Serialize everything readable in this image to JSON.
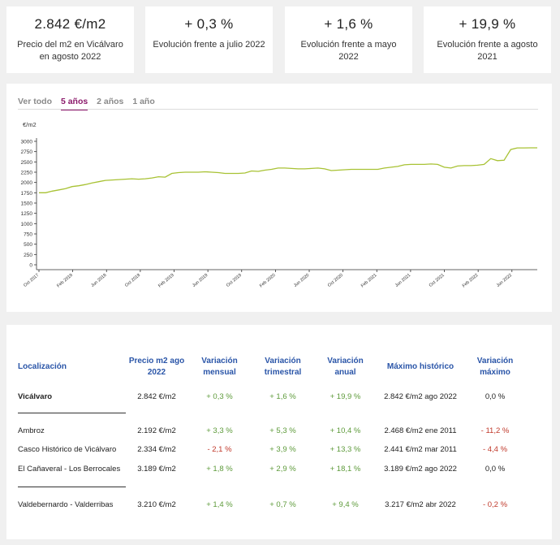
{
  "kpis": [
    {
      "value": "2.842 €/m2",
      "label": "Precio del m2 en Vicálvaro en agosto 2022"
    },
    {
      "value": "+ 0,3 %",
      "label": "Evolución frente a julio 2022"
    },
    {
      "value": "+ 1,6 %",
      "label": "Evolución frente a mayo 2022"
    },
    {
      "value": "+ 19,9 %",
      "label": "Evolución frente a agosto 2021"
    }
  ],
  "tabs": [
    "Ver todo",
    "5 años",
    "2 años",
    "1 año"
  ],
  "chart_data": {
    "type": "line",
    "ylabel": "€/m2",
    "ylim": [
      0,
      3000
    ],
    "yticks": [
      0,
      250,
      500,
      750,
      1000,
      1250,
      1500,
      1750,
      2000,
      2250,
      2500,
      2750,
      3000
    ],
    "xtick_labels": [
      "Oct 2017",
      "Feb 2018",
      "Jun 2018",
      "Oct 2018",
      "Feb 2019",
      "Jun 2019",
      "Oct 2019",
      "Feb 2020",
      "Jun 2020",
      "Oct 2020",
      "Feb 2021",
      "Jun 2021",
      "Oct 2021",
      "Feb 2022",
      "Jun 2022"
    ],
    "line_color": "#a8c234",
    "series": [
      {
        "name": "Vicálvaro",
        "values": [
          1750,
          1750,
          1790,
          1820,
          1850,
          1900,
          1920,
          1950,
          1990,
          2020,
          2050,
          2060,
          2070,
          2080,
          2090,
          2080,
          2090,
          2110,
          2140,
          2130,
          2220,
          2240,
          2250,
          2250,
          2250,
          2260,
          2250,
          2240,
          2220,
          2220,
          2220,
          2230,
          2280,
          2270,
          2300,
          2320,
          2350,
          2350,
          2340,
          2330,
          2330,
          2340,
          2350,
          2330,
          2290,
          2300,
          2310,
          2320,
          2320,
          2320,
          2320,
          2320,
          2350,
          2370,
          2390,
          2430,
          2440,
          2440,
          2440,
          2450,
          2440,
          2370,
          2350,
          2400,
          2410,
          2410,
          2420,
          2440,
          2580,
          2530,
          2540,
          2800,
          2840,
          2840,
          2842,
          2842
        ]
      }
    ]
  },
  "table": {
    "headers": [
      "Localización",
      "Precio m2 ago 2022",
      "Variación mensual",
      "Variación trimestral",
      "Variación anual",
      "Máximo histórico",
      "Variación máximo"
    ],
    "rows": [
      {
        "name": "Vicálvaro",
        "price": "2.842 €/m2",
        "monthly": "+ 0,3 %",
        "quarterly": "+ 1,6 %",
        "annual": "+ 19,9 %",
        "max": "2.842 €/m2 ago 2022",
        "varmax": "0,0 %"
      },
      {
        "name": "Ambroz",
        "price": "2.192 €/m2",
        "monthly": "+ 3,3 %",
        "quarterly": "+ 5,3 %",
        "annual": "+ 10,4 %",
        "max": "2.468 €/m2 ene 2011",
        "varmax": "- 11,2 %"
      },
      {
        "name": "Casco Histórico de Vicálvaro",
        "price": "2.334 €/m2",
        "monthly": "- 2,1 %",
        "quarterly": "+ 3,9 %",
        "annual": "+ 13,3 %",
        "max": "2.441 €/m2 mar 2011",
        "varmax": "- 4,4 %"
      },
      {
        "name": "El Cañaveral - Los Berrocales",
        "price": "3.189 €/m2",
        "monthly": "+ 1,8 %",
        "quarterly": "+ 2,9 %",
        "annual": "+ 18,1 %",
        "max": "3.189 €/m2 ago 2022",
        "varmax": "0,0 %"
      },
      {
        "name": "Valdebernardo - Valderribas",
        "price": "3.210 €/m2",
        "monthly": "+ 1,4 %",
        "quarterly": "+ 0,7 %",
        "annual": "+ 9,4 %",
        "max": "3.217 €/m2 abr 2022",
        "varmax": "- 0,2 %"
      }
    ]
  },
  "colors": {
    "positive": "#5d9a3a",
    "negative": "#c0392b",
    "header": "#2a55a8",
    "active_tab": "#8b1a6b"
  }
}
